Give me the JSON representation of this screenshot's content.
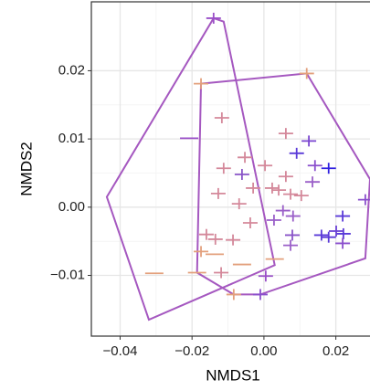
{
  "chart_data": {
    "type": "scatter",
    "xlabel": "NMDS1",
    "ylabel": "NMDS2",
    "xlim": [
      -0.048,
      0.0295
    ],
    "ylim": [
      -0.0189,
      0.0301
    ],
    "xticks": [
      {
        "value": -0.04,
        "label": "−0.04"
      },
      {
        "value": -0.02,
        "label": "−0.02"
      },
      {
        "value": 0,
        "label": "0.00"
      },
      {
        "value": 0.02,
        "label": "0.02"
      }
    ],
    "yticks": [
      {
        "value": -0.01,
        "label": "−0.01"
      },
      {
        "value": 0,
        "label": "0.00"
      },
      {
        "value": 0.01,
        "label": "0.01"
      },
      {
        "value": 0.02,
        "label": "0.02"
      }
    ],
    "grid": true,
    "x": [
      -0.014,
      -0.0175,
      0.0119,
      -0.0117,
      -0.0208,
      0.0061,
      0.0125,
      0.0091,
      -0.0053,
      -0.0112,
      -0.0061,
      0.0003,
      0.0142,
      0.018,
      0.0061,
      0.0023,
      -0.003,
      0.0135,
      -0.0127,
      0.0041,
      0.0074,
      0.0104,
      -0.0069,
      0.0282,
      0.0053,
      0.0081,
      0.0028,
      -0.0038,
      0.0219,
      0.0221,
      0.016,
      0.018,
      0.0201,
      0.0079,
      -0.016,
      -0.0135,
      -0.0086,
      0.0074,
      0.0219,
      -0.0175,
      -0.0137,
      0.003,
      -0.0061,
      -0.0305,
      -0.0186,
      -0.0119,
      0.0005,
      -0.0084,
      -0.001
    ],
    "y": [
      0.0277,
      0.0181,
      0.0196,
      0.0131,
      0.0101,
      0.0108,
      0.0097,
      0.0079,
      0.0073,
      0.0057,
      0.0048,
      0.0061,
      0.0061,
      0.0057,
      0.0045,
      0.0028,
      0.0028,
      0.0037,
      0.002,
      0.0025,
      0.0019,
      0.0017,
      0.0005,
      0.0011,
      -0.0005,
      -0.0013,
      -0.0019,
      -0.0023,
      -0.0013,
      -0.0039,
      -0.0041,
      -0.0044,
      -0.0035,
      -0.0041,
      -0.004,
      -0.0047,
      -0.0048,
      -0.0056,
      -0.0053,
      -0.0065,
      -0.0069,
      -0.0076,
      -0.0084,
      -0.0097,
      -0.0096,
      -0.0096,
      -0.0101,
      -0.0128,
      -0.0128
    ],
    "colors": [
      "#9a4fc8",
      "#e3a07c",
      "#e3a07c",
      "#d4889a",
      "#9a4fc8",
      "#d4889a",
      "#7a45d0",
      "#5a3ad8",
      "#d4889a",
      "#d4889a",
      "#8a55c8",
      "#d4889a",
      "#8a4fcc",
      "#3020e0",
      "#d4889a",
      "#d4889a",
      "#d4889a",
      "#9a5fc8",
      "#d4889a",
      "#d4889a",
      "#d4889a",
      "#d4889a",
      "#d4889a",
      "#8a4fcc",
      "#9a5fc8",
      "#9a5fc8",
      "#9a5fc8",
      "#d4889a",
      "#5a3ad8",
      "#5a3ad8",
      "#5a3ad8",
      "#5a3ad8",
      "#6a40d4",
      "#8a55c8",
      "#d4889a",
      "#d4889a",
      "#d4889a",
      "#9a5fc8",
      "#8a4fcc",
      "#e3a07c",
      "#e3a07c",
      "#e3a07c",
      "#e3a07c",
      "#e3a07c",
      "#e3a07c",
      "#d4889a",
      "#9a4fc8",
      "#e3a07c",
      "#8a4fcc"
    ],
    "markers": [
      "+",
      "+",
      "+",
      "+",
      "-",
      "+",
      "+",
      "+",
      "+",
      "+",
      "+",
      "+",
      "+",
      "+",
      "+",
      "+",
      "+",
      "+",
      "+",
      "+",
      "+",
      "+",
      "+",
      "+",
      "+",
      "+",
      "+",
      "+",
      "+",
      "+",
      "+",
      "+",
      "+",
      "+",
      "+",
      "+",
      "+",
      "+",
      "+",
      "+",
      "-",
      "-",
      "-",
      "-",
      "-",
      "+",
      "+",
      "+",
      "+"
    ],
    "hull_color": "#a558c0",
    "hulls": [
      {
        "x": [
          -0.014,
          -0.0437,
          -0.032,
          0.003,
          -0.0112
        ],
        "y": [
          0.0277,
          0.0015,
          -0.0165,
          -0.0085,
          0.0272
        ]
      },
      {
        "x": [
          -0.0175,
          0.0119,
          0.0295,
          0.0282,
          -0.001,
          -0.0084,
          -0.0186
        ],
        "y": [
          0.0181,
          0.0196,
          0.0041,
          -0.0075,
          -0.0128,
          -0.0128,
          -0.0096
        ]
      }
    ]
  }
}
